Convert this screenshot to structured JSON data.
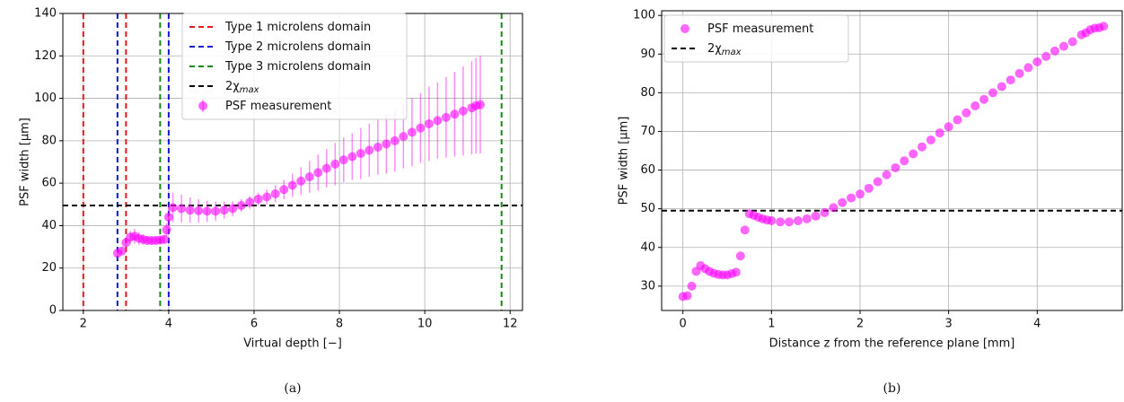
{
  "chart_data": [
    {
      "type": "errorbar",
      "xlabel": "Virtual depth [−]",
      "ylabel": "PSF width [μm]",
      "caption": "(a)",
      "xlim": [
        1.52,
        12.29
      ],
      "ylim": [
        0,
        140
      ],
      "xticks": [
        2,
        4,
        6,
        8,
        10,
        12
      ],
      "yticks": [
        0,
        20,
        40,
        60,
        80,
        100,
        120,
        140
      ],
      "grid": true,
      "vlines": [
        {
          "name": "Type 1 microlens domain",
          "color": "#e8191c",
          "x": [
            2,
            3
          ]
        },
        {
          "name": "Type 2 microlens domain",
          "color": "#1515d0",
          "x": [
            2.8,
            4
          ]
        },
        {
          "name": "Type 3 microlens domain",
          "color": "#168a16",
          "x": [
            3.8,
            11.8
          ]
        }
      ],
      "hline": {
        "name": "2χ",
        "subscript": "max",
        "color": "#000000",
        "y": 49.5
      },
      "series": [
        {
          "name": "PSF measurement",
          "color": "#ff00ff",
          "x": [
            2.8,
            2.9,
            3.0,
            3.1,
            3.2,
            3.3,
            3.4,
            3.5,
            3.6,
            3.7,
            3.8,
            3.9,
            3.95,
            4.0,
            4.1,
            4.3,
            4.5,
            4.7,
            4.9,
            5.1,
            5.3,
            5.5,
            5.7,
            5.9,
            6.1,
            6.3,
            6.5,
            6.7,
            6.9,
            7.1,
            7.3,
            7.5,
            7.7,
            7.9,
            8.1,
            8.3,
            8.5,
            8.7,
            8.9,
            9.1,
            9.3,
            9.5,
            9.7,
            9.9,
            10.1,
            10.3,
            10.5,
            10.7,
            10.9,
            11.1,
            11.2,
            11.3
          ],
          "values": [
            27,
            28,
            32,
            34.5,
            35,
            34,
            33.5,
            33,
            33,
            33,
            33.2,
            33.5,
            38,
            44,
            48.5,
            48,
            47.3,
            47,
            46.8,
            46.8,
            47.3,
            48,
            49.5,
            51,
            52.5,
            53.5,
            55,
            57,
            59,
            61,
            63,
            65,
            67,
            69,
            71,
            72.5,
            74,
            75.5,
            77,
            78.5,
            80,
            82,
            84,
            86,
            88,
            89.5,
            91,
            92.5,
            94,
            95.5,
            96.5,
            97
          ],
          "errors": [
            1.5,
            1.5,
            2,
            3,
            3.5,
            3,
            2.5,
            2,
            2,
            2,
            2,
            2,
            3,
            5,
            7,
            6.5,
            6,
            5.5,
            5,
            4.5,
            4,
            3.5,
            3,
            3,
            3,
            3.5,
            4,
            4.5,
            5.5,
            6.5,
            7.5,
            8.5,
            9,
            10,
            10.5,
            11,
            12,
            12.5,
            13,
            14,
            14.5,
            15,
            16,
            16.5,
            17.5,
            18,
            19,
            20,
            21,
            22,
            22.5,
            23
          ]
        }
      ]
    },
    {
      "type": "scatter",
      "xlabel": "Distance z from the reference plane [mm]",
      "ylabel": "PSF width [μm]",
      "caption": "(b)",
      "xlim": [
        -0.24,
        4.96
      ],
      "ylim": [
        23.7,
        101.2
      ],
      "xticks": [
        0,
        1,
        2,
        3,
        4
      ],
      "yticks": [
        30,
        40,
        50,
        60,
        70,
        80,
        90,
        100
      ],
      "grid": true,
      "hline": {
        "name": "2χ",
        "subscript": "max",
        "color": "#000000",
        "y": 49.5
      },
      "series": [
        {
          "name": "PSF measurement",
          "color": "#ff00ff",
          "x": [
            0,
            0.05,
            0.1,
            0.15,
            0.2,
            0.25,
            0.3,
            0.35,
            0.4,
            0.45,
            0.5,
            0.55,
            0.6,
            0.65,
            0.7,
            0.75,
            0.8,
            0.85,
            0.9,
            0.95,
            1.0,
            1.1,
            1.2,
            1.3,
            1.4,
            1.5,
            1.6,
            1.7,
            1.8,
            1.9,
            2.0,
            2.1,
            2.2,
            2.3,
            2.4,
            2.5,
            2.6,
            2.7,
            2.8,
            2.9,
            3.0,
            3.1,
            3.2,
            3.3,
            3.4,
            3.5,
            3.6,
            3.7,
            3.8,
            3.9,
            4.0,
            4.1,
            4.2,
            4.3,
            4.4,
            4.5,
            4.55,
            4.6,
            4.65,
            4.7,
            4.75
          ],
          "values": [
            27.3,
            27.5,
            30,
            33.8,
            35.3,
            34.5,
            33.8,
            33.3,
            33,
            32.9,
            32.9,
            33.2,
            33.6,
            37.8,
            44.5,
            48.7,
            48.3,
            47.8,
            47.4,
            47.1,
            46.9,
            46.6,
            46.6,
            46.9,
            47.4,
            48.1,
            49,
            50.3,
            51.6,
            52.8,
            53.8,
            55.3,
            57,
            58.8,
            60.6,
            62.4,
            64.2,
            66,
            67.8,
            69.6,
            71.2,
            73,
            74.8,
            76.6,
            78.3,
            80,
            81.6,
            83.3,
            85,
            86.5,
            88,
            89.4,
            90.8,
            92,
            93.2,
            95,
            95.5,
            96.3,
            96.7,
            96.8,
            97.2
          ]
        }
      ]
    }
  ]
}
